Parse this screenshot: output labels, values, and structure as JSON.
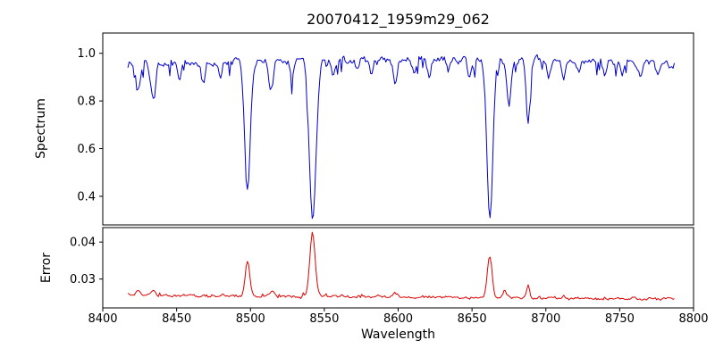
{
  "figure": {
    "background": "#ffffff"
  },
  "chart_data": {
    "type": "line",
    "title": "20070412_1959m29_062",
    "xlabel": "Wavelength",
    "x_range": [
      8400,
      8800
    ],
    "x_ticks": [
      8400,
      8450,
      8500,
      8550,
      8600,
      8650,
      8700,
      8750,
      8800
    ],
    "data_x_range": [
      8417,
      8787
    ],
    "grid": false,
    "panels": [
      {
        "name": "spectrum",
        "ylabel": "Spectrum",
        "color": "#0000cc",
        "mode": "absorption",
        "ylim": [
          0.28,
          1.085
        ],
        "yticks": [
          "0.4",
          "0.6",
          "0.8",
          "1.0"
        ],
        "continuum_level": 0.955,
        "features": [
          [
            8424,
            0.845,
            1.4
          ],
          [
            8434,
            0.8,
            1.6
          ],
          [
            8452,
            0.9,
            1.1
          ],
          [
            8468,
            0.875,
            1.3
          ],
          [
            8480,
            0.9,
            1.1
          ],
          [
            8498.0,
            0.42,
            1.9
          ],
          [
            8514,
            0.845,
            1.5
          ],
          [
            8528,
            0.905,
            1.1
          ],
          [
            8542.1,
            0.305,
            2.3
          ],
          [
            8556,
            0.91,
            1.1
          ],
          [
            8572,
            0.92,
            1.0
          ],
          [
            8582,
            0.905,
            1.1
          ],
          [
            8598,
            0.865,
            1.4
          ],
          [
            8611,
            0.91,
            1.1
          ],
          [
            8621,
            0.895,
            1.2
          ],
          [
            8634,
            0.925,
            1.0
          ],
          [
            8648,
            0.9,
            1.2
          ],
          [
            8662.1,
            0.295,
            2.0
          ],
          [
            8675,
            0.79,
            1.4
          ],
          [
            8688,
            0.7,
            1.3
          ],
          [
            8702,
            0.905,
            1.1
          ],
          [
            8712,
            0.89,
            1.2
          ],
          [
            8722,
            0.92,
            1.0
          ],
          [
            8740,
            0.905,
            1.1
          ],
          [
            8752,
            0.915,
            1.0
          ],
          [
            8764,
            0.9,
            1.1
          ],
          [
            8776,
            0.91,
            1.0
          ]
        ]
      },
      {
        "name": "error",
        "ylabel": "Error",
        "color": "#e00000",
        "mode": "emission",
        "ylim": [
          0.0222,
          0.0439
        ],
        "yticks": [
          "0.03",
          "0.04"
        ],
        "baseline_level": 0.0257,
        "features": [
          [
            8424,
            0.0268,
            1.4
          ],
          [
            8434,
            0.0272,
            1.5
          ],
          [
            8498,
            0.0352,
            1.5
          ],
          [
            8515,
            0.0272,
            1.4
          ],
          [
            8542,
            0.043,
            1.8
          ],
          [
            8598,
            0.0268,
            1.3
          ],
          [
            8662,
            0.0372,
            1.6
          ],
          [
            8672,
            0.0276,
            1.2
          ],
          [
            8688,
            0.0293,
            1.0
          ],
          [
            8712,
            0.0266,
            1.1
          ]
        ]
      }
    ]
  }
}
